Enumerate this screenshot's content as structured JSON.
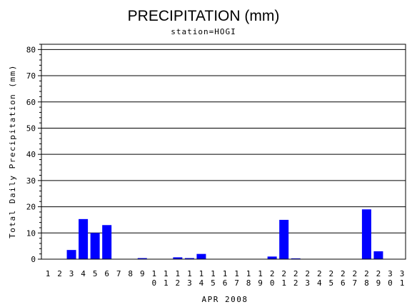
{
  "chart_data": {
    "type": "bar",
    "title": "PRECIPITATION (mm)",
    "subtitle": "station=HOGI",
    "xlabel": "APR 2008",
    "ylabel": "Total Daily Precipitation (mm)",
    "ylim": [
      0,
      82
    ],
    "yticks": [
      0,
      10,
      20,
      30,
      40,
      50,
      60,
      70,
      80
    ],
    "grid": true,
    "bar_color": "#0000ff",
    "categories": [
      "1",
      "2",
      "3",
      "4",
      "5",
      "6",
      "7",
      "8",
      "9",
      "10",
      "11",
      "12",
      "13",
      "14",
      "15",
      "16",
      "17",
      "18",
      "19",
      "20",
      "21",
      "22",
      "23",
      "24",
      "25",
      "26",
      "27",
      "28",
      "29",
      "30",
      "31"
    ],
    "values": [
      0,
      0,
      3.5,
      15.3,
      10.0,
      13.0,
      0,
      0,
      0.4,
      0,
      0,
      0.7,
      0.4,
      2.0,
      0,
      0,
      0,
      0,
      0,
      1.0,
      15.0,
      0.3,
      0,
      0,
      0,
      0,
      0,
      19.0,
      3.0,
      0,
      0
    ]
  }
}
